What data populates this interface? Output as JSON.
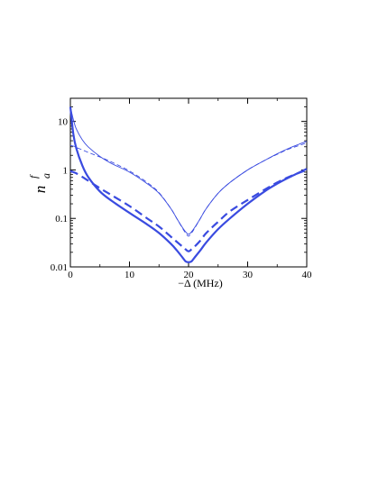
{
  "chart_data": {
    "type": "line",
    "title": "",
    "xlabel": "−Δ (MHz)",
    "ylabel_main": "n",
    "ylabel_sub": "a",
    "ylabel_sup": "f",
    "xlim": [
      0,
      40
    ],
    "ylim": [
      0.01,
      30
    ],
    "yscale": "log",
    "x_ticks": [
      "0",
      "10",
      "20",
      "30",
      "40"
    ],
    "y_ticks": [
      "0.01",
      "0.1",
      "1",
      "10"
    ],
    "grid": false,
    "line_color": "#3a4be0",
    "x": [
      0,
      0.5,
      1,
      2,
      3,
      5,
      7,
      10,
      13,
      15,
      17,
      18,
      19,
      19.5,
      20,
      20.5,
      21,
      22,
      23,
      25,
      27,
      30,
      33,
      35,
      37,
      40
    ],
    "series": [
      {
        "style": "thin-solid",
        "values": [
          20,
          11,
          7,
          4.2,
          3.0,
          1.9,
          1.35,
          0.9,
          0.52,
          0.33,
          0.16,
          0.1,
          0.064,
          0.053,
          0.047,
          0.053,
          0.064,
          0.1,
          0.16,
          0.33,
          0.55,
          1.0,
          1.6,
          2.15,
          2.8,
          3.9
        ]
      },
      {
        "style": "thin-dashed",
        "values": [
          3.2,
          3.1,
          2.9,
          2.6,
          2.3,
          1.85,
          1.45,
          0.95,
          0.55,
          0.34,
          0.16,
          0.1,
          0.062,
          0.05,
          0.043,
          0.05,
          0.062,
          0.1,
          0.16,
          0.33,
          0.55,
          1.0,
          1.6,
          2.1,
          2.7,
          3.6
        ]
      },
      {
        "style": "thick-solid",
        "values": [
          20,
          5.5,
          2.8,
          1.25,
          0.72,
          0.36,
          0.23,
          0.13,
          0.075,
          0.05,
          0.03,
          0.022,
          0.0155,
          0.013,
          0.0125,
          0.013,
          0.0155,
          0.022,
          0.032,
          0.06,
          0.1,
          0.2,
          0.37,
          0.52,
          0.7,
          1.05
        ]
      },
      {
        "style": "thick-dashed",
        "values": [
          0.95,
          0.9,
          0.85,
          0.72,
          0.6,
          0.42,
          0.3,
          0.18,
          0.1,
          0.068,
          0.042,
          0.033,
          0.026,
          0.023,
          0.021,
          0.023,
          0.026,
          0.035,
          0.05,
          0.085,
          0.14,
          0.24,
          0.4,
          0.55,
          0.72,
          1.0
        ]
      }
    ]
  }
}
